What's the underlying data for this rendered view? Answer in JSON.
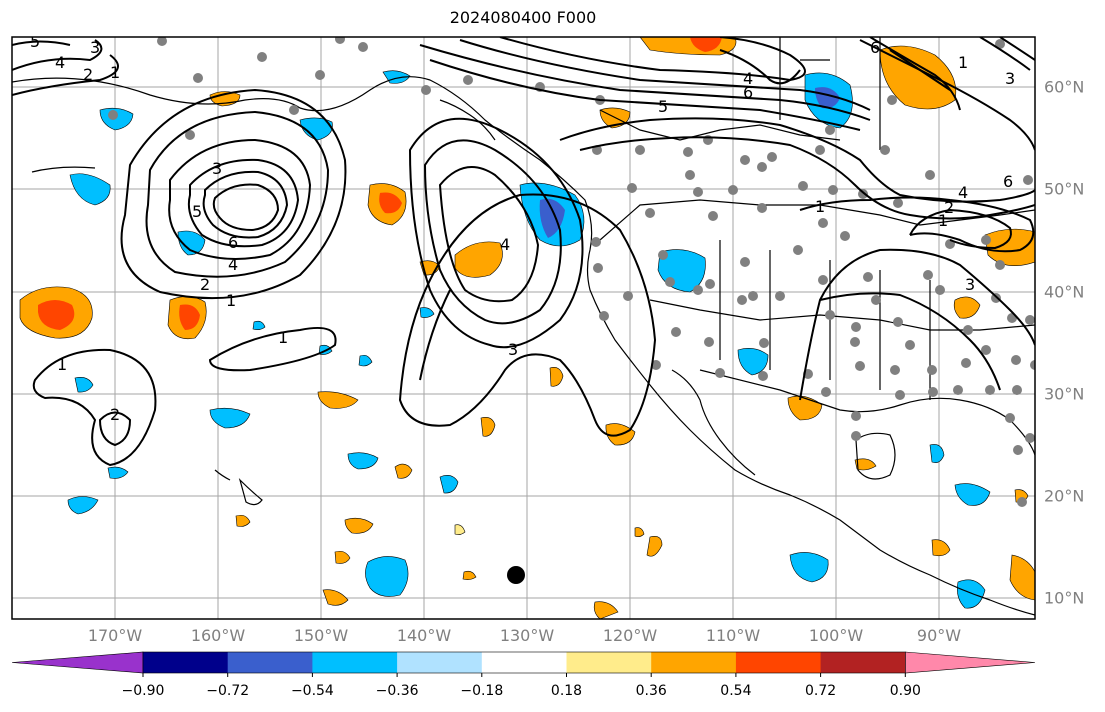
{
  "title": "2024080400 F000",
  "longitude_labels": [
    "170°W",
    "160°W",
    "150°W",
    "140°W",
    "130°W",
    "120°W",
    "110°W",
    "100°W",
    "90°W"
  ],
  "latitude_labels": [
    "60°N",
    "50°N",
    "40°N",
    "30°N",
    "20°N",
    "10°N"
  ],
  "colorbar": {
    "ticks": [
      "−0.90",
      "−0.72",
      "−0.54",
      "−0.36",
      "−0.18",
      "0.18",
      "0.36",
      "0.54",
      "0.72",
      "0.90"
    ],
    "colors": [
      "#9932cc",
      "#00008b",
      "#3a5fcd",
      "#00bfff",
      "#b0e2ff",
      "#ffffff",
      "#ffec8b",
      "#ffa500",
      "#ff4500",
      "#b22222",
      "#ff88aa"
    ]
  },
  "contour_labels": [
    "1",
    "2",
    "3",
    "4",
    "5",
    "6"
  ],
  "map_extent": {
    "lon": [
      -180,
      -80
    ],
    "lat": [
      8,
      66
    ]
  },
  "palette": {
    "land_outline": "#000000",
    "grid": "#808080",
    "station_dot": "#808080",
    "marker": "#000000"
  }
}
